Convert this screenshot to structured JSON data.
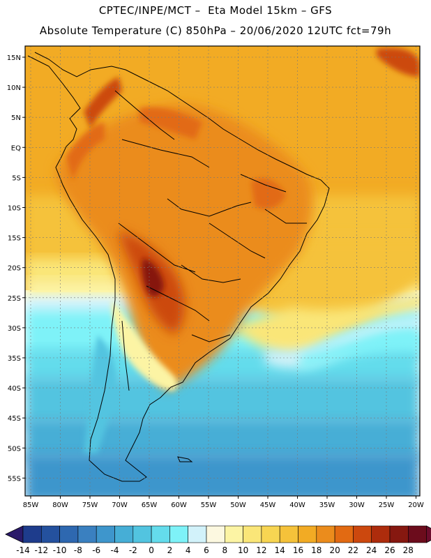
{
  "header": {
    "line1": "CPTEC/INPE/MCT –  Eta Model 15km – GFS",
    "line2": "Absolute Temperature (C) 850hPa – 20/06/2020 12UTC fct=79h"
  },
  "map": {
    "lat_labels": [
      "15N",
      "10N",
      "5N",
      "EQ",
      "5S",
      "10S",
      "15S",
      "20S",
      "25S",
      "30S",
      "35S",
      "40S",
      "45S",
      "50S",
      "55S"
    ],
    "lon_labels": [
      "85W",
      "80W",
      "75W",
      "70W",
      "65W",
      "60W",
      "55W",
      "50W",
      "45W",
      "40W",
      "35W",
      "30W",
      "25W",
      "20W"
    ]
  },
  "colorbar": {
    "labels": [
      "-14",
      "-12",
      "-10",
      "-8",
      "-6",
      "-4",
      "-2",
      "0",
      "2",
      "4",
      "6",
      "8",
      "10",
      "12",
      "14",
      "16",
      "18",
      "20",
      "22",
      "24",
      "26",
      "28"
    ],
    "colors": [
      "#1e3c8c",
      "#24519e",
      "#2e68b0",
      "#3a80c0",
      "#3e96cc",
      "#46aed6",
      "#52c4e0",
      "#64dcec",
      "#7ef2f8",
      "#d2f2fa",
      "#fcf8e0",
      "#fcf4a4",
      "#fae678",
      "#f7d552",
      "#f5c23a",
      "#f2ab24",
      "#eb8c1c",
      "#e26a12",
      "#cc480e",
      "#ad2c0c",
      "#861810",
      "#6c0c1c"
    ]
  }
}
